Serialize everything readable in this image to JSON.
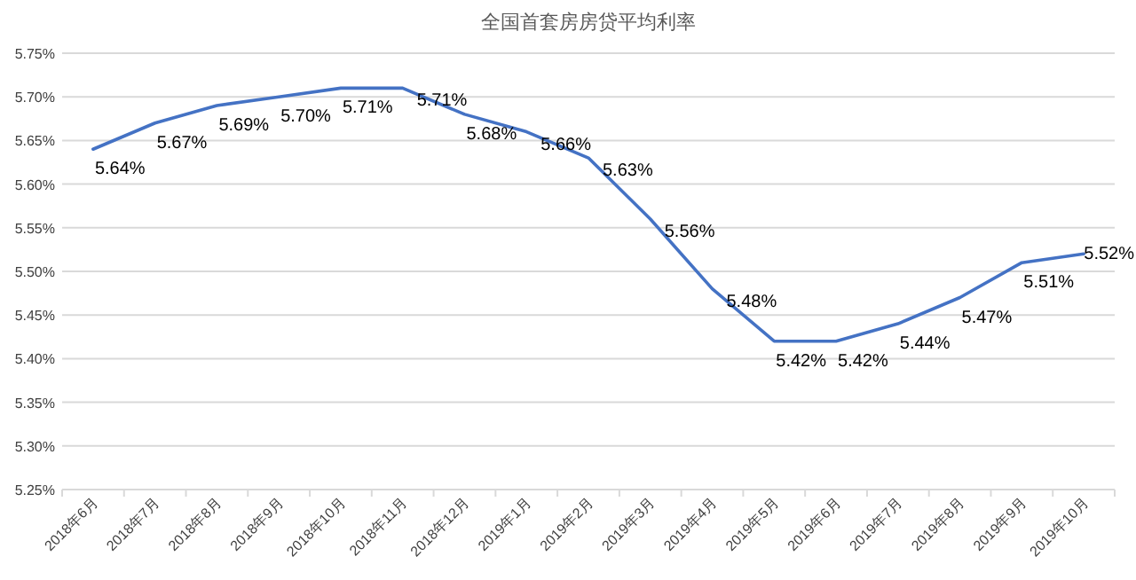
{
  "chart_data": {
    "type": "line",
    "title": "全国首套房房贷平均利率",
    "categories": [
      "2018年6月",
      "2018年7月",
      "2018年8月",
      "2018年9月",
      "2018年10月",
      "2018年11月",
      "2018年12月",
      "2019年1月",
      "2019年2月",
      "2019年3月",
      "2019年4月",
      "2019年5月",
      "2019年6月",
      "2019年7月",
      "2019年8月",
      "2019年9月",
      "2019年10月"
    ],
    "series": [
      {
        "color": "#4472c4",
        "values": [
          5.64,
          5.67,
          5.69,
          5.7,
          5.71,
          5.71,
          5.68,
          5.66,
          5.63,
          5.56,
          5.48,
          5.42,
          5.42,
          5.44,
          5.47,
          5.51,
          5.52
        ],
        "value_labels": [
          "5.64%",
          "5.67%",
          "5.69%",
          "5.70%",
          "5.71%",
          "5.71%",
          "5.68%",
          "5.66%",
          "5.63%",
          "5.56%",
          "5.48%",
          "5.42%",
          "5.42%",
          "5.44%",
          "5.47%",
          "5.51%",
          "5.52%"
        ]
      }
    ],
    "ylim": [
      5.25,
      5.75
    ],
    "yticks": [
      {
        "value": 5.25,
        "label": "5.25%"
      },
      {
        "value": 5.3,
        "label": "5.30%"
      },
      {
        "value": 5.35,
        "label": "5.35%"
      },
      {
        "value": 5.4,
        "label": "5.40%"
      },
      {
        "value": 5.45,
        "label": "5.45%"
      },
      {
        "value": 5.5,
        "label": "5.50%"
      },
      {
        "value": 5.55,
        "label": "5.55%"
      },
      {
        "value": 5.6,
        "label": "5.60%"
      },
      {
        "value": 5.65,
        "label": "5.65%"
      },
      {
        "value": 5.7,
        "label": "5.70%"
      },
      {
        "value": 5.75,
        "label": "5.75%"
      }
    ],
    "grid": "y",
    "marker": "none",
    "line_style": "solid"
  }
}
